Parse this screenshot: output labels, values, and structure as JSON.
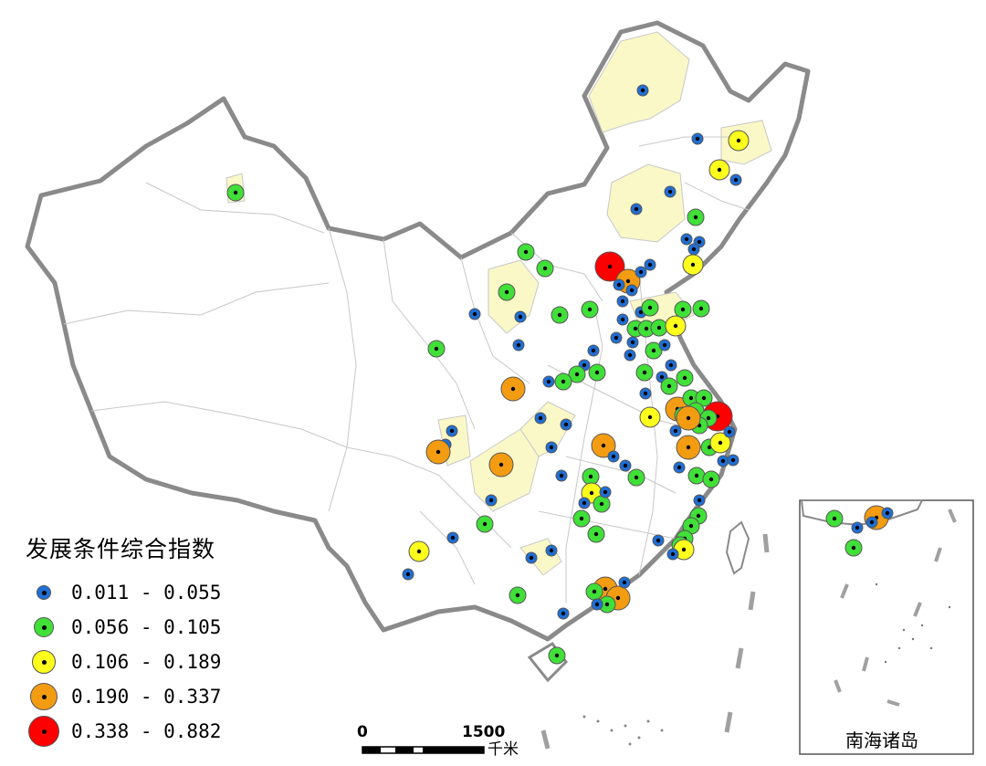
{
  "legend": {
    "title": "发展条件综合指数",
    "classes": [
      {
        "label": "0.011 - 0.055",
        "color": "#1f6fd6"
      },
      {
        "label": "0.056 - 0.105",
        "color": "#40e038"
      },
      {
        "label": "0.106 - 0.189",
        "color": "#ffff1e"
      },
      {
        "label": "0.190 - 0.337",
        "color": "#f39c12"
      },
      {
        "label": "0.338 - 0.882",
        "color": "#ff0000"
      }
    ]
  },
  "scale_bar": {
    "zero": "0",
    "max": "1500",
    "unit": "千米"
  },
  "inset": {
    "label": "南海诸岛"
  },
  "colors": {
    "land": "#ffffff",
    "highlight": "#fbf8c8",
    "border": "#8a8a8a",
    "internal": "#c8c8c8",
    "marker_outline": "#555555"
  }
}
